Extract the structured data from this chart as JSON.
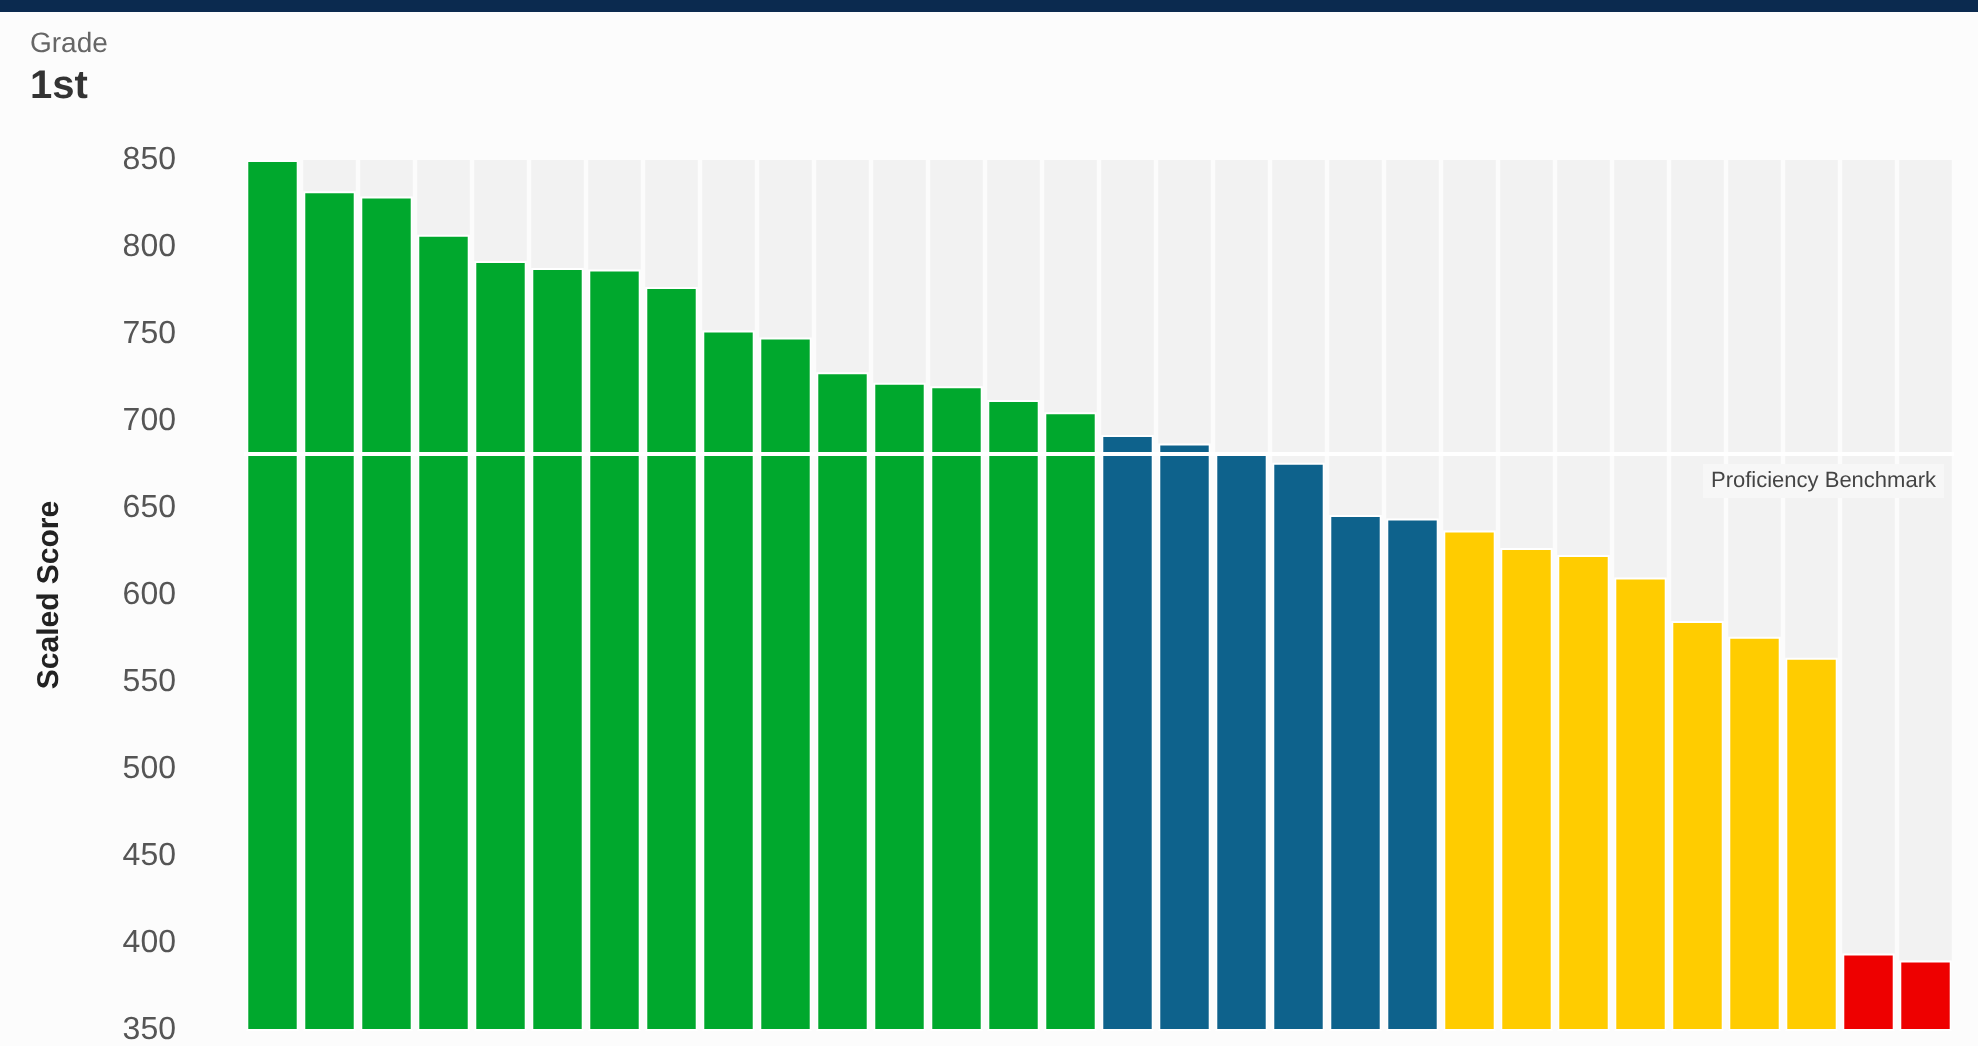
{
  "chart_data": {
    "type": "bar",
    "title": "1st",
    "annotations": [
      "Grade"
    ],
    "ylabel": "Scaled Score",
    "categories": [
      null,
      null,
      null,
      null,
      null,
      null,
      null,
      null,
      null,
      null,
      null,
      null,
      null,
      null,
      null,
      null,
      null,
      null,
      null,
      null,
      null,
      null,
      null,
      null,
      null,
      null,
      null,
      null,
      null,
      null
    ],
    "values": [
      850,
      832,
      829,
      807,
      792,
      788,
      787,
      777,
      752,
      748,
      728,
      722,
      720,
      712,
      705,
      692,
      687,
      681,
      676,
      646,
      644,
      637,
      627,
      623,
      610,
      585,
      576,
      564,
      394,
      390
    ],
    "colors": [
      "#00a82d",
      "#00a82d",
      "#00a82d",
      "#00a82d",
      "#00a82d",
      "#00a82d",
      "#00a82d",
      "#00a82d",
      "#00a82d",
      "#00a82d",
      "#00a82d",
      "#00a82d",
      "#00a82d",
      "#00a82d",
      "#00a82d",
      "#0e628c",
      "#0e628c",
      "#0e628c",
      "#0e628c",
      "#0e628c",
      "#0e628c",
      "#ffcc00",
      "#ffcc00",
      "#ffcc00",
      "#ffcc00",
      "#ffcc00",
      "#ffcc00",
      "#ffcc00",
      "#ee0000",
      "#ee0000"
    ],
    "ylim": [
      350,
      850
    ],
    "yticks": [
      350,
      400,
      450,
      500,
      550,
      600,
      650,
      700,
      750,
      800,
      850
    ],
    "ref_lines": [
      {
        "axis": "y",
        "value": 681,
        "label": "Proficiency Benchmark",
        "color": "#ffffff"
      }
    ],
    "grid": false,
    "tick_labels": "y"
  }
}
